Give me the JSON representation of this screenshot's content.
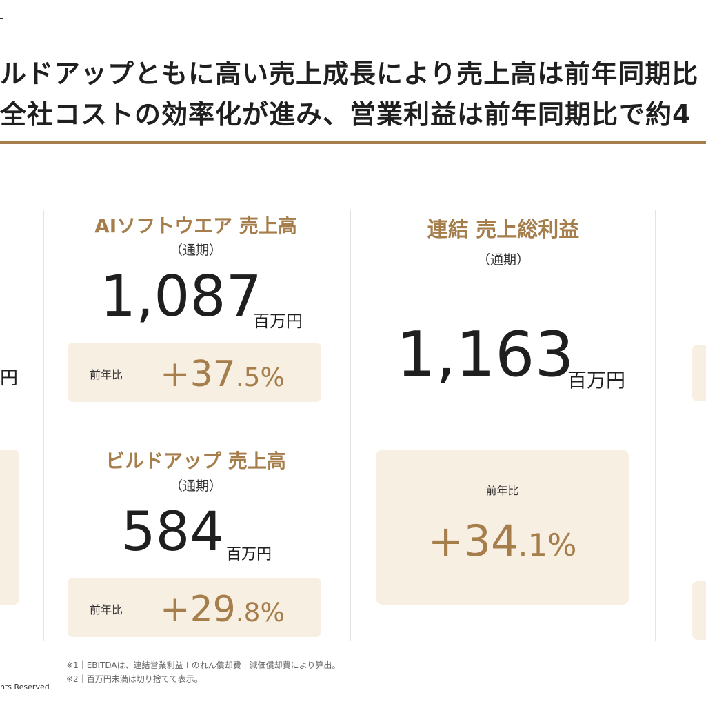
{
  "header": {
    "line1": "ルドアップともに高い売上成長により売上高は前年同期比",
    "line2": "全社コストの効率化が進み、営業利益は前年同期比で約4"
  },
  "left_partial": {
    "unit": "円"
  },
  "ai_software": {
    "title": "AIソフトウエア 売上高",
    "period": "（通期）",
    "value": "1,087",
    "unit": "百万円",
    "yoy_label": "前年比",
    "yoy_main": "+37",
    "yoy_dec": ".5%"
  },
  "buildup": {
    "title": "ビルドアップ 売上高",
    "period": "（通期）",
    "value": "584",
    "unit": "百万円",
    "yoy_label": "前年比",
    "yoy_main": "+29",
    "yoy_dec": ".8%"
  },
  "gross_profit": {
    "title": "連結 売上総利益",
    "period": "（通期）",
    "value": "1,163",
    "unit": "百万円",
    "yoy_label": "前年比",
    "yoy_main": "+34",
    "yoy_dec": ".1%"
  },
  "footnotes": {
    "note1": "※1｜EBITDAは、連結営業利益＋のれん償却費＋減価償却費により算出。",
    "note2": "※2｜百万円未満は切り捨てて表示。"
  },
  "copyright": "hts Reserved"
}
